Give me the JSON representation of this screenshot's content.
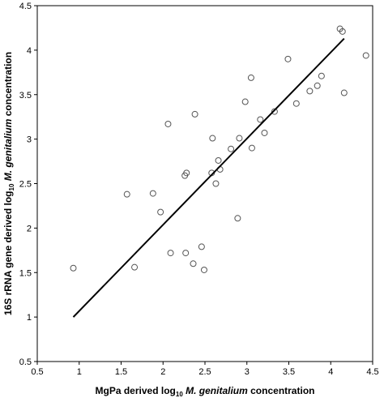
{
  "chart_data": {
    "type": "scatter",
    "title": "",
    "xlabel": {
      "prefix": "MgPa derived log",
      "sub": "10",
      "italic": "M. genitalium",
      "suffix": " concentration"
    },
    "ylabel": {
      "prefix": "16S rRNA gene derived log",
      "sub": "10",
      "italic": "M. genitalium",
      "suffix": " concentration"
    },
    "xlim": [
      0.5,
      4.5
    ],
    "ylim": [
      0.5,
      4.5
    ],
    "xticks": [
      "0.5",
      "1",
      "1.5",
      "2",
      "2.5",
      "3",
      "3.5",
      "4",
      "4.5"
    ],
    "yticks": [
      "0.5",
      "1",
      "1.5",
      "2",
      "2.5",
      "3",
      "3.5",
      "4",
      "4.5"
    ],
    "grid": false,
    "legend": "none",
    "points": [
      [
        0.93,
        1.55
      ],
      [
        1.57,
        2.38
      ],
      [
        1.66,
        1.56
      ],
      [
        1.88,
        2.39
      ],
      [
        1.97,
        2.18
      ],
      [
        2.06,
        3.17
      ],
      [
        2.09,
        1.72
      ],
      [
        2.26,
        2.59
      ],
      [
        2.28,
        2.62
      ],
      [
        2.27,
        1.72
      ],
      [
        2.36,
        1.6
      ],
      [
        2.38,
        3.28
      ],
      [
        2.46,
        1.79
      ],
      [
        2.49,
        1.53
      ],
      [
        2.58,
        2.62
      ],
      [
        2.59,
        3.01
      ],
      [
        2.63,
        2.5
      ],
      [
        2.66,
        2.76
      ],
      [
        2.68,
        2.66
      ],
      [
        2.81,
        2.89
      ],
      [
        2.89,
        2.11
      ],
      [
        2.91,
        3.01
      ],
      [
        2.98,
        3.42
      ],
      [
        3.05,
        3.69
      ],
      [
        3.06,
        2.9
      ],
      [
        3.16,
        3.22
      ],
      [
        3.21,
        3.07
      ],
      [
        3.33,
        3.31
      ],
      [
        3.49,
        3.9
      ],
      [
        3.59,
        3.4
      ],
      [
        3.75,
        3.54
      ],
      [
        3.84,
        3.6
      ],
      [
        3.89,
        3.71
      ],
      [
        4.11,
        4.24
      ],
      [
        4.14,
        4.21
      ],
      [
        4.16,
        3.52
      ],
      [
        4.42,
        3.94
      ]
    ],
    "fit_line": {
      "x": [
        0.93,
        4.16
      ],
      "y": [
        1.0,
        4.13
      ]
    }
  }
}
